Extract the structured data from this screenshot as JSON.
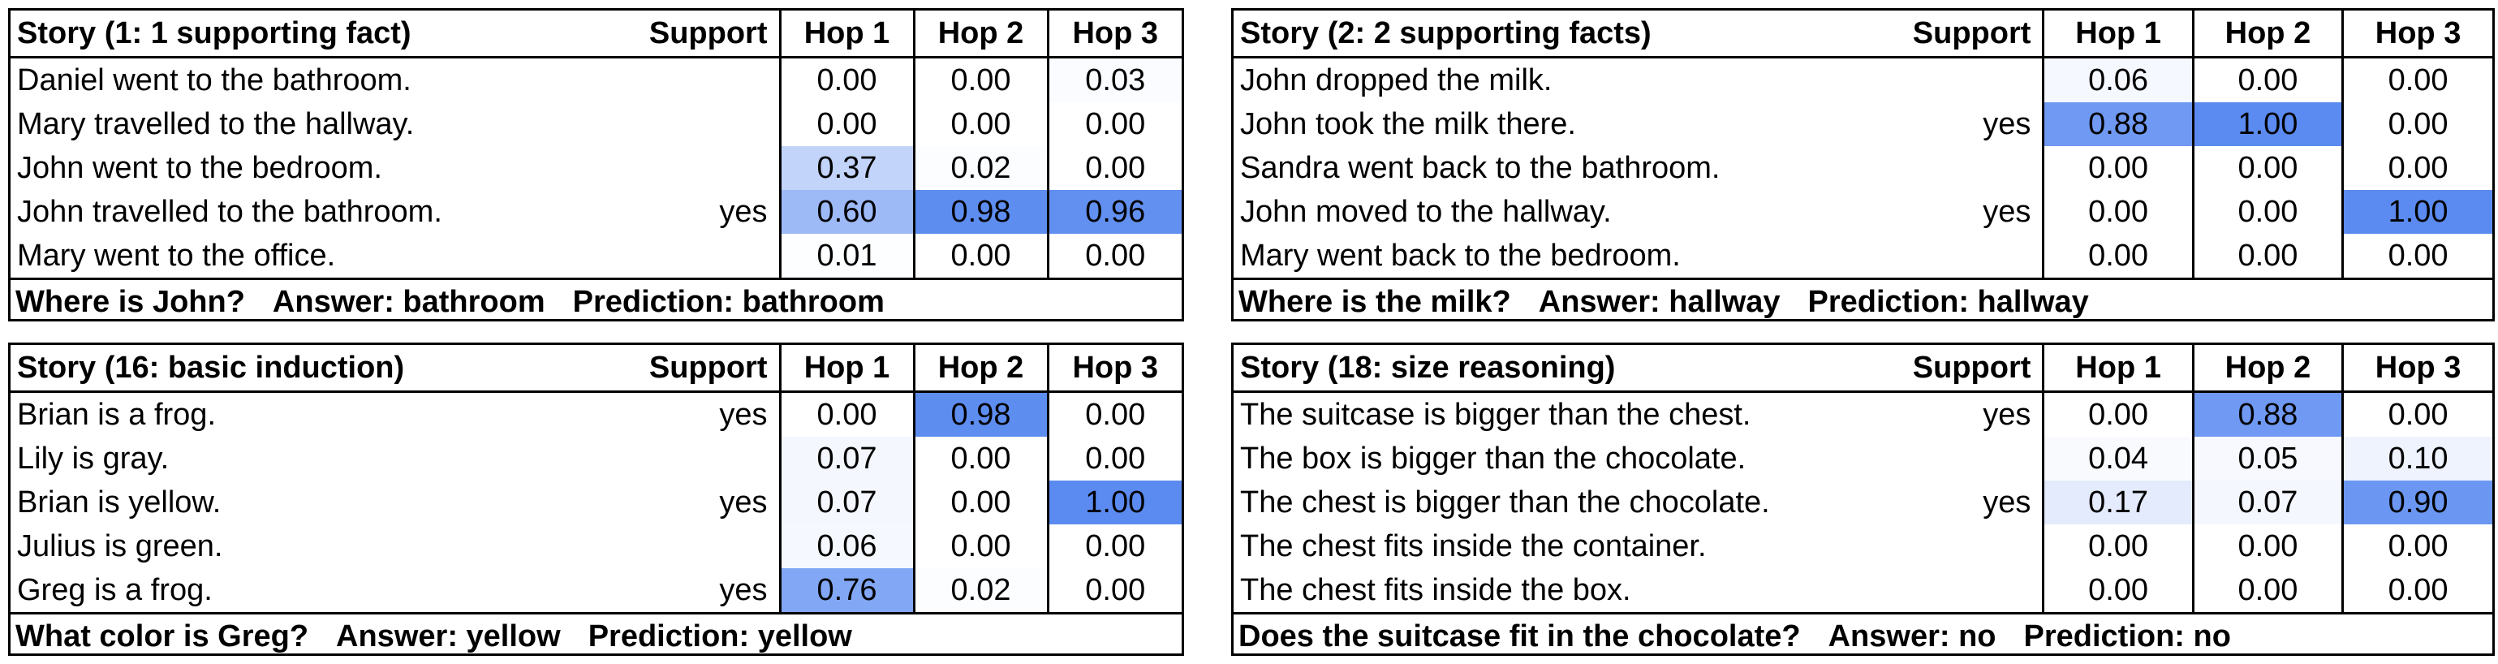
{
  "panels": [
    {
      "title": "Story (1: 1 supporting fact)",
      "headers": [
        "Support",
        "Hop 1",
        "Hop 2",
        "Hop 3"
      ],
      "rows": [
        {
          "sentence": "Daniel went to the bathroom.",
          "support": "",
          "hops": [
            "0.00",
            "0.00",
            "0.03"
          ]
        },
        {
          "sentence": "Mary travelled to the hallway.",
          "support": "",
          "hops": [
            "0.00",
            "0.00",
            "0.00"
          ]
        },
        {
          "sentence": "John went to the bedroom.",
          "support": "",
          "hops": [
            "0.37",
            "0.02",
            "0.00"
          ]
        },
        {
          "sentence": "John travelled to the bathroom.",
          "support": "yes",
          "hops": [
            "0.60",
            "0.98",
            "0.96"
          ]
        },
        {
          "sentence": "Mary went to the office.",
          "support": "",
          "hops": [
            "0.01",
            "0.00",
            "0.00"
          ]
        }
      ],
      "question": "Where is John?",
      "answer": "Answer: bathroom",
      "prediction": "Prediction: bathroom"
    },
    {
      "title": "Story (2: 2 supporting facts)",
      "headers": [
        "Support",
        "Hop 1",
        "Hop 2",
        "Hop 3"
      ],
      "rows": [
        {
          "sentence": "John dropped the milk.",
          "support": "",
          "hops": [
            "0.06",
            "0.00",
            "0.00"
          ]
        },
        {
          "sentence": "John took the milk there.",
          "support": "yes",
          "hops": [
            "0.88",
            "1.00",
            "0.00"
          ]
        },
        {
          "sentence": "Sandra went back to the bathroom.",
          "support": "",
          "hops": [
            "0.00",
            "0.00",
            "0.00"
          ]
        },
        {
          "sentence": "John moved to the hallway.",
          "support": "yes",
          "hops": [
            "0.00",
            "0.00",
            "1.00"
          ]
        },
        {
          "sentence": "Mary went back to the bedroom.",
          "support": "",
          "hops": [
            "0.00",
            "0.00",
            "0.00"
          ]
        }
      ],
      "question": "Where is the milk?",
      "answer": "Answer: hallway",
      "prediction": "Prediction: hallway"
    },
    {
      "title": "Story (16: basic induction)",
      "headers": [
        "Support",
        "Hop 1",
        "Hop 2",
        "Hop 3"
      ],
      "rows": [
        {
          "sentence": "Brian is a frog.",
          "support": "yes",
          "hops": [
            "0.00",
            "0.98",
            "0.00"
          ]
        },
        {
          "sentence": "Lily is gray.",
          "support": "",
          "hops": [
            "0.07",
            "0.00",
            "0.00"
          ]
        },
        {
          "sentence": "Brian is yellow.",
          "support": "yes",
          "hops": [
            "0.07",
            "0.00",
            "1.00"
          ]
        },
        {
          "sentence": "Julius is green.",
          "support": "",
          "hops": [
            "0.06",
            "0.00",
            "0.00"
          ]
        },
        {
          "sentence": "Greg is a frog.",
          "support": "yes",
          "hops": [
            "0.76",
            "0.02",
            "0.00"
          ]
        }
      ],
      "question": "What color is Greg?",
      "answer": "Answer: yellow",
      "prediction": "Prediction: yellow"
    },
    {
      "title": "Story (18: size reasoning)",
      "headers": [
        "Support",
        "Hop 1",
        "Hop 2",
        "Hop 3"
      ],
      "rows": [
        {
          "sentence": "The suitcase is bigger than the chest.",
          "support": "yes",
          "hops": [
            "0.00",
            "0.88",
            "0.00"
          ]
        },
        {
          "sentence": "The box is bigger than the chocolate.",
          "support": "",
          "hops": [
            "0.04",
            "0.05",
            "0.10"
          ]
        },
        {
          "sentence": "The chest is bigger than the chocolate.",
          "support": "yes",
          "hops": [
            "0.17",
            "0.07",
            "0.90"
          ]
        },
        {
          "sentence": "The chest fits inside the container.",
          "support": "",
          "hops": [
            "0.00",
            "0.00",
            "0.00"
          ]
        },
        {
          "sentence": "The chest fits inside the box.",
          "support": "",
          "hops": [
            "0.00",
            "0.00",
            "0.00"
          ]
        }
      ],
      "question": "Does the suitcase fit in the chocolate?",
      "answer": "Answer: no",
      "prediction": "Prediction: no"
    }
  ],
  "colors": {
    "heat_max": "#5b8bf0"
  }
}
